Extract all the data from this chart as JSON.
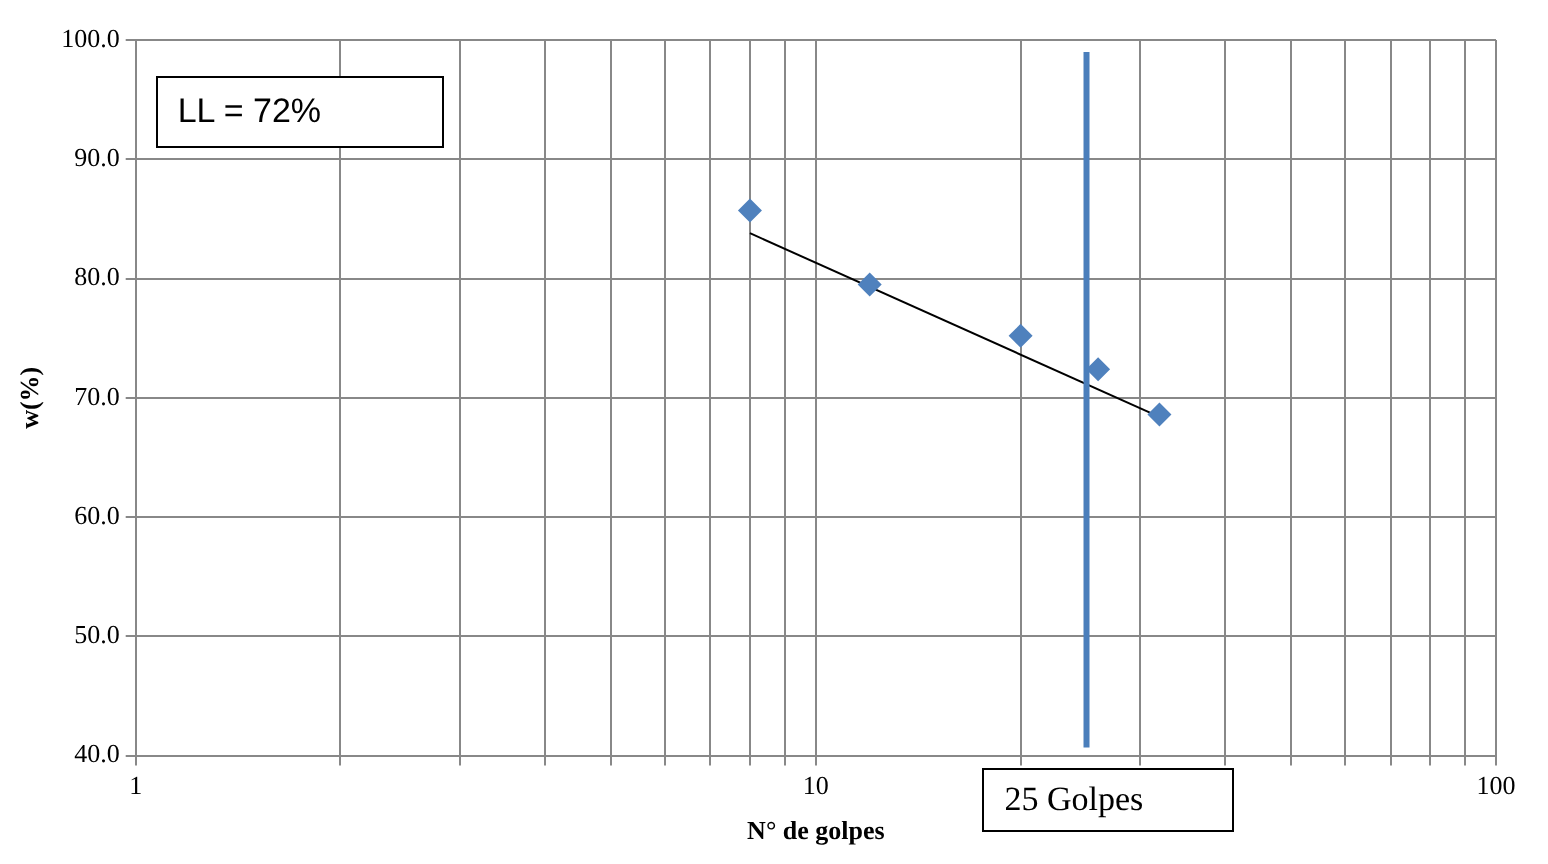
{
  "chart_data": {
    "type": "scatter",
    "xlabel": "N° de golpes",
    "ylabel": "w(%)",
    "log": "x",
    "grid": true,
    "legend": false,
    "marker": "diamond",
    "xlim": [
      1,
      100
    ],
    "xticks": [
      1,
      {
        "value": 2,
        "label": null
      },
      {
        "value": 3,
        "label": null
      },
      {
        "value": 4,
        "label": null
      },
      {
        "value": 5,
        "label": null
      },
      {
        "value": 6,
        "label": null
      },
      {
        "value": 7,
        "label": null
      },
      {
        "value": 8,
        "label": null
      },
      {
        "value": 9,
        "label": null
      },
      10,
      {
        "value": 20,
        "label": null
      },
      {
        "value": 30,
        "label": null
      },
      {
        "value": 40,
        "label": null
      },
      {
        "value": 50,
        "label": null
      },
      {
        "value": 60,
        "label": null
      },
      {
        "value": 70,
        "label": null
      },
      {
        "value": 80,
        "label": null
      },
      {
        "value": 90,
        "label": null
      },
      100
    ],
    "ylim": [
      40,
      100
    ],
    "yticks": [
      {
        "value": 40,
        "label": "40.0"
      },
      {
        "value": 50,
        "label": "50.0"
      },
      {
        "value": 60,
        "label": "60.0"
      },
      {
        "value": 70,
        "label": "70.0"
      },
      {
        "value": 80,
        "label": "80.0"
      },
      {
        "value": 90,
        "label": "90.0"
      },
      {
        "value": 100,
        "label": "100.0"
      }
    ],
    "series": [
      {
        "color": "#4f81bd",
        "x": [
          8,
          12,
          20,
          26,
          32
        ],
        "values": [
          85.7,
          79.5,
          75.2,
          72.4,
          68.6
        ]
      },
      {
        "type": "line",
        "color": "#000000",
        "marker": "none",
        "x": [
          8,
          32
        ],
        "values": [
          83.8,
          68.4
        ]
      }
    ],
    "ref_lines": [
      {
        "axis": "x",
        "value": 25,
        "color": "#4a7ebb"
      }
    ],
    "annotations": [
      "LL = 72%",
      "25 Golpes"
    ]
  }
}
